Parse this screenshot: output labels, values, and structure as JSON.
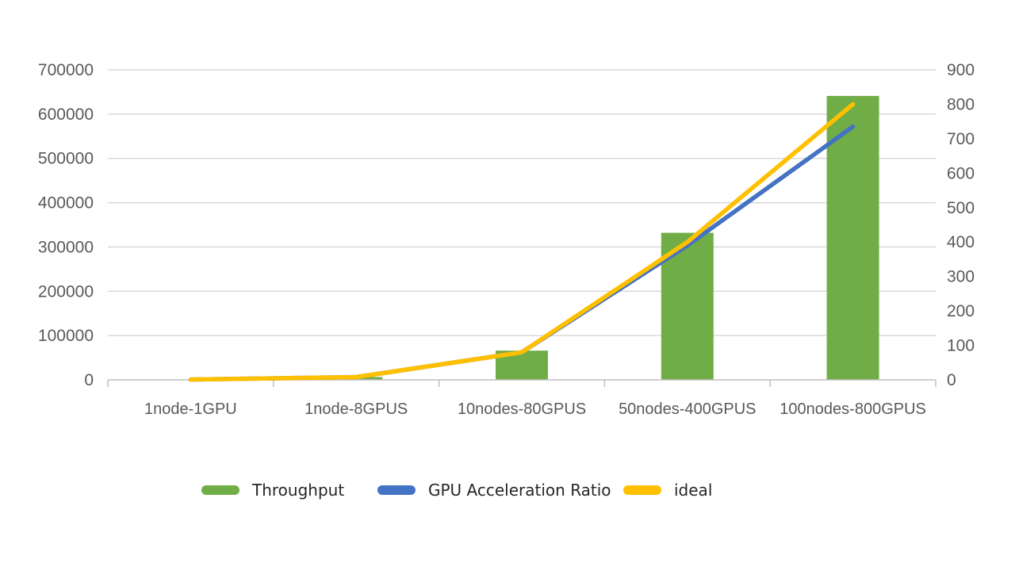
{
  "chart_data": {
    "type": "bar",
    "categories": [
      "1node-1GPU",
      "1node-8GPUS",
      "10nodes-80GPUS",
      "50nodes-400GPUS",
      "100nodes-800GPUS"
    ],
    "series": [
      {
        "name": "Throughput",
        "kind": "bar",
        "axis": "left",
        "color": "#70ad47",
        "values": [
          800,
          6400,
          66000,
          332000,
          641000
        ]
      },
      {
        "name": "GPU Acceleration Ratio",
        "kind": "line",
        "axis": "right",
        "color": "#4472c4",
        "values": [
          1,
          8,
          80,
          390,
          735
        ]
      },
      {
        "name": "ideal",
        "kind": "line",
        "axis": "right",
        "color": "#ffc000",
        "values": [
          1,
          8,
          80,
          400,
          800
        ]
      }
    ],
    "y_left": {
      "ylim": [
        0,
        700000
      ],
      "ticks": [
        "0",
        "100000",
        "200000",
        "300000",
        "400000",
        "500000",
        "600000",
        "700000"
      ]
    },
    "y_right": {
      "ylim": [
        0,
        900
      ],
      "ticks": [
        "0",
        "100",
        "200",
        "300",
        "400",
        "500",
        "600",
        "700",
        "800",
        "900"
      ]
    },
    "grid": true,
    "legend_position": "bottom"
  },
  "legend": {
    "items": [
      {
        "label": "Throughput",
        "color": "#70ad47"
      },
      {
        "label": "GPU Acceleration Ratio",
        "color": "#4472c4"
      },
      {
        "label": "ideal",
        "color": "#ffc000"
      }
    ]
  }
}
